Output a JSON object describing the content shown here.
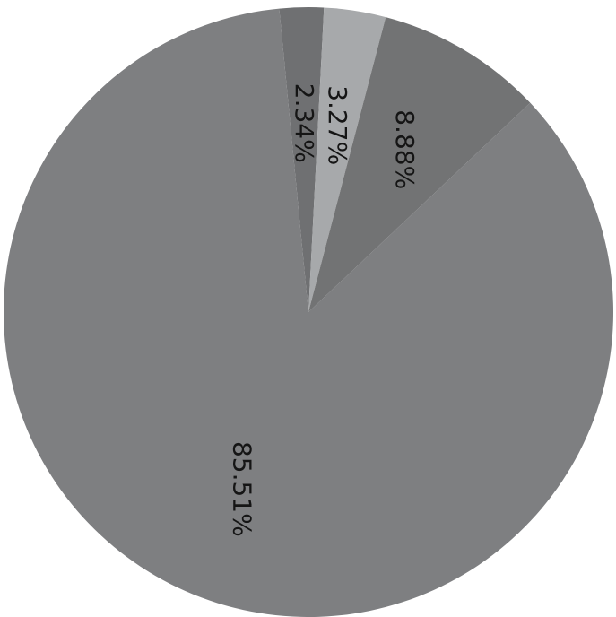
{
  "chart_data": {
    "type": "pie",
    "slices": [
      {
        "label": "2.34%",
        "value": 2.34,
        "color": "#6f7072"
      },
      {
        "label": "3.27%",
        "value": 3.27,
        "color": "#a7a9ab"
      },
      {
        "label": "8.88%",
        "value": 8.88,
        "color": "#727374"
      },
      {
        "label": "85.51%",
        "value": 85.51,
        "color": "#7e7f81"
      }
    ]
  }
}
